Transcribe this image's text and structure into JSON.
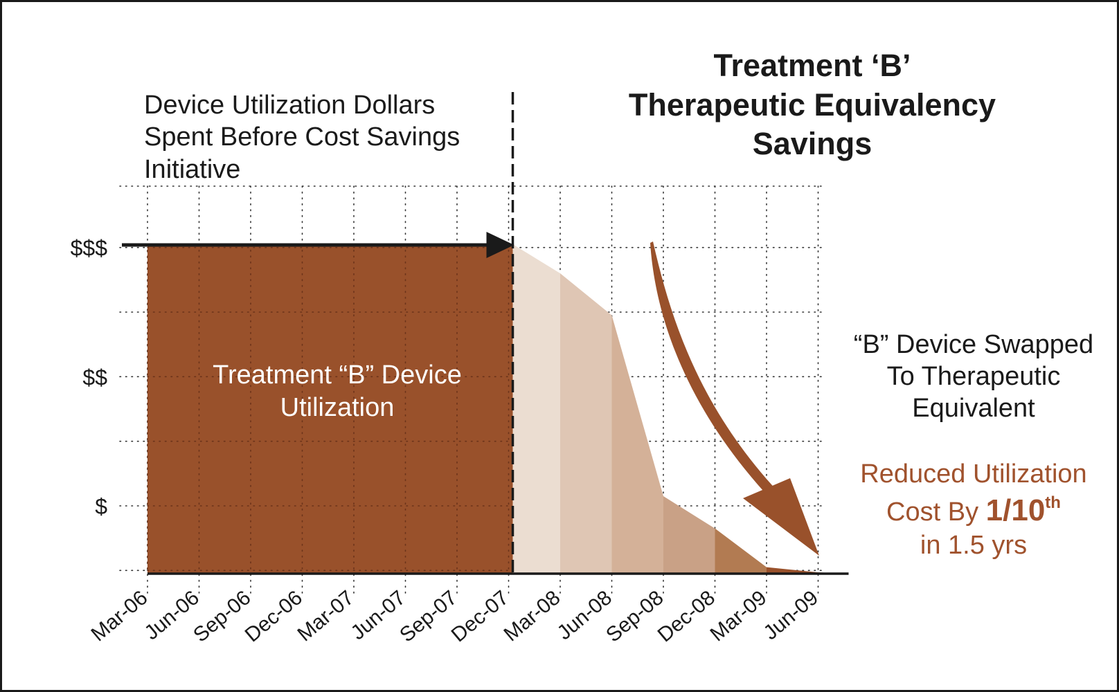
{
  "chart_data": {
    "type": "area",
    "title": [
      "Treatment ‘B’",
      "Therapeutic Equivalency",
      "Savings"
    ],
    "xlabel": "",
    "ylabel": "",
    "x_categories": [
      "Mar-06",
      "Jun-06",
      "Sep-06",
      "Dec-06",
      "Mar-07",
      "Jun-07",
      "Sep-07",
      "Dec-07",
      "Mar-08",
      "Jun-08",
      "Sep-08",
      "Dec-08",
      "Mar-09",
      "Jun-09"
    ],
    "y_ticks": [
      {
        "label": "$",
        "value": 1
      },
      {
        "label": "$$",
        "value": 3
      },
      {
        "label": "$$$",
        "value": 5
      }
    ],
    "ylim": [
      0,
      6
    ],
    "series": [
      {
        "name": "Treatment “B” Device Utilization",
        "period": "before",
        "color": "#99512B",
        "points": [
          {
            "x": "Mar-06",
            "y": 5.1
          },
          {
            "x": "Dec-07",
            "y": 5.1
          }
        ]
      },
      {
        "name": "Therapeutic Equivalency Savings",
        "period": "after",
        "points": [
          {
            "x": "Dec-07",
            "y": 5.1
          },
          {
            "x": "Mar-08",
            "y": 4.65
          },
          {
            "x": "Jun-08",
            "y": 4.0
          },
          {
            "x": "Sep-08",
            "y": 1.2
          },
          {
            "x": "Dec-08",
            "y": 0.7
          },
          {
            "x": "Mar-09",
            "y": 0.1
          },
          {
            "x": "Jun-09",
            "y": 0.02
          }
        ],
        "segment_colors": [
          "#EBDDD1",
          "#DFC6B4",
          "#D4B198",
          "#C9A186",
          "#B27B52",
          "#99512B"
        ]
      }
    ],
    "baseline_x_end": "Jun-09+"
  },
  "annotations": {
    "before_label": [
      "Device Utilization Dollars",
      "Spent Before Cost Savings",
      "Initiative"
    ],
    "area_label": [
      "Treatment “B” Device",
      "Utilization"
    ],
    "swap_label": [
      "“B” Device Swapped",
      "To Therapeutic",
      "Equivalent"
    ],
    "reduced_line1": "Reduced Utilization",
    "reduced_line2_prefix": "Cost By ",
    "reduced_fraction": "1/10",
    "reduced_sup": "th",
    "reduced_line3": "in 1.5 yrs"
  },
  "colors": {
    "brown": "#99512B",
    "accent_text": "#A0522D",
    "ink": "#1a1a1a"
  }
}
